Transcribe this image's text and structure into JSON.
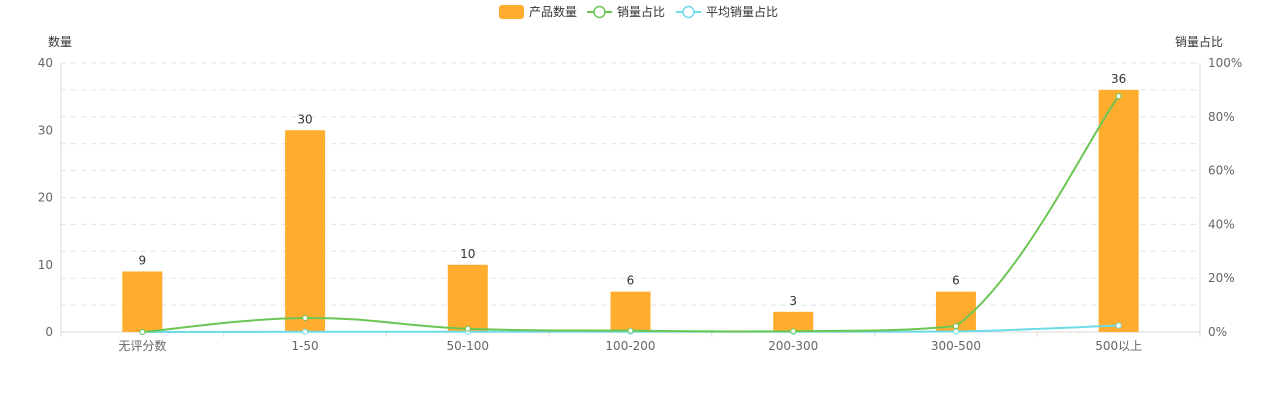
{
  "chart_data": {
    "type": "bar",
    "categories": [
      "无评分数",
      "1-50",
      "50-100",
      "100-200",
      "200-300",
      "300-500",
      "500以上"
    ],
    "series": [
      {
        "name": "产品数量",
        "type": "bar",
        "axis": "left",
        "color": "#FFAC2F",
        "values": [
          9,
          30,
          10,
          6,
          3,
          6,
          36
        ]
      },
      {
        "name": "销量占比",
        "type": "line",
        "axis": "right",
        "color": "#6CC653",
        "values": [
          0.0,
          5.2,
          1.2,
          0.5,
          0.3,
          2.2,
          87.7
        ]
      },
      {
        "name": "平均销量占比",
        "type": "line",
        "axis": "right",
        "color": "#6EDBE8",
        "values": [
          0.0,
          0.1,
          0.1,
          0.1,
          0.1,
          0.2,
          2.4
        ]
      }
    ],
    "left_axis": {
      "title": "数量",
      "min": 0,
      "max": 40,
      "ticks": [
        "0",
        "10",
        "20",
        "30",
        "40"
      ]
    },
    "right_axis": {
      "title": "销量占比",
      "min": 0,
      "max": 100,
      "ticks": [
        "0%",
        "20%",
        "40%",
        "60%",
        "80%",
        "100%"
      ]
    },
    "bar_labels": [
      "9",
      "30",
      "10",
      "6",
      "3",
      "6",
      "36"
    ],
    "grid": "dashed horizontal",
    "legend": "top-center"
  }
}
